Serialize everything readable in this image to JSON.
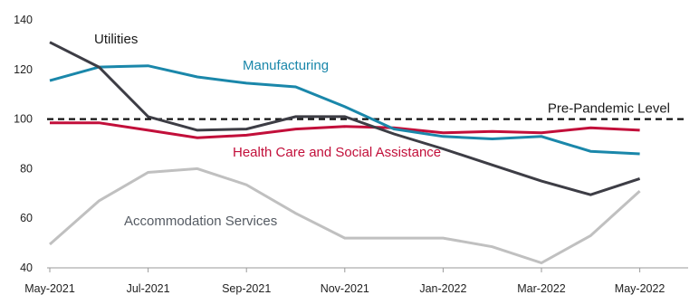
{
  "chart_data": {
    "type": "line",
    "x": [
      "May-2021",
      "Jun-2021",
      "Jul-2021",
      "Aug-2021",
      "Sep-2021",
      "Oct-2021",
      "Nov-2021",
      "Dec-2021",
      "Jan-2022",
      "Feb-2022",
      "Mar-2022",
      "Apr-2022",
      "May-2022"
    ],
    "x_tick_labels": [
      "May-2021",
      "Jul-2021",
      "Sep-2021",
      "Nov-2021",
      "Jan-2022",
      "Mar-2022",
      "May-2022"
    ],
    "y_ticks": [
      40,
      60,
      80,
      100,
      120,
      140
    ],
    "ylim": [
      40,
      140
    ],
    "grid": false,
    "legend": "none (series labeled inline)",
    "reference_line": {
      "label": "Pre-Pandemic Level",
      "value": 100,
      "style": "dashed",
      "color": "#111111"
    },
    "series": [
      {
        "name": "Utilities",
        "color": "#3d3d45",
        "values": [
          131,
          121,
          101,
          95.5,
          96,
          101,
          101,
          94,
          88,
          81.5,
          75,
          69.5,
          76
        ]
      },
      {
        "name": "Manufacturing",
        "color": "#1a87aa",
        "values": [
          115.5,
          121,
          121.5,
          117,
          114.5,
          113,
          105,
          96,
          93,
          92,
          93,
          87,
          86
        ]
      },
      {
        "name": "Health Care and Social Assistance",
        "color": "#c20f3a",
        "values": [
          98.5,
          98.5,
          95.5,
          92.5,
          93.5,
          96,
          97,
          96.5,
          94.5,
          95,
          94.5,
          96.5,
          95.5
        ]
      },
      {
        "name": "Accommodation Services",
        "color": "#c0c0c0",
        "values": [
          49.5,
          67,
          78.5,
          80,
          73.5,
          62,
          52,
          52,
          52,
          48.5,
          42,
          53,
          71
        ]
      }
    ]
  }
}
